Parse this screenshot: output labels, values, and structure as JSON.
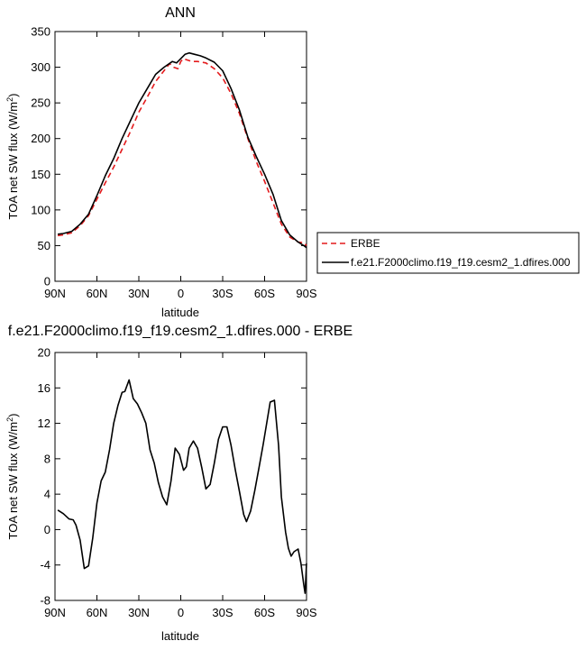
{
  "chart_data": [
    {
      "type": "line",
      "title": "ANN",
      "xlabel": "latitude",
      "ylabel": "TOA net SW flux (W/m",
      "ylabel_sup": "2",
      "ylabel_close": ")",
      "xlim": [
        90,
        -90
      ],
      "ylim": [
        0,
        350
      ],
      "x_ticks": [
        90,
        60,
        30,
        0,
        -30,
        -60,
        -90
      ],
      "x_tick_labels": [
        "90N",
        "60N",
        "30N",
        "0",
        "30S",
        "60S",
        "90S"
      ],
      "y_ticks": [
        0,
        50,
        100,
        150,
        200,
        250,
        300,
        350
      ],
      "y_tick_labels": [
        "0",
        "50",
        "100",
        "150",
        "200",
        "250",
        "300",
        "350"
      ],
      "legend_position": "right",
      "series": [
        {
          "name": "ERBE",
          "color": "#e41a1c",
          "dash": "dashed",
          "points": [
            [
              88,
              64
            ],
            [
              84,
              65
            ],
            [
              78,
              68
            ],
            [
              72,
              78
            ],
            [
              66,
              92
            ],
            [
              60,
              115
            ],
            [
              54,
              138
            ],
            [
              48,
              160
            ],
            [
              42,
              185
            ],
            [
              36,
              210
            ],
            [
              30,
              237
            ],
            [
              24,
              258
            ],
            [
              18,
              280
            ],
            [
              12,
              295
            ],
            [
              8,
              305
            ],
            [
              5,
              300
            ],
            [
              2,
              298
            ],
            [
              0,
              308
            ],
            [
              -2,
              312
            ],
            [
              -5,
              310
            ],
            [
              -8,
              308
            ],
            [
              -12,
              308
            ],
            [
              -18,
              306
            ],
            [
              -24,
              298
            ],
            [
              -30,
              285
            ],
            [
              -36,
              263
            ],
            [
              -42,
              235
            ],
            [
              -48,
              200
            ],
            [
              -54,
              168
            ],
            [
              -60,
              140
            ],
            [
              -66,
              110
            ],
            [
              -72,
              80
            ],
            [
              -78,
              62
            ],
            [
              -84,
              55
            ],
            [
              -88,
              54
            ],
            [
              -90,
              50
            ]
          ]
        },
        {
          "name": "f.e21.F2000climo.f19_f19.cesm2_1.dfires.000",
          "color": "#000000",
          "dash": "solid",
          "points": [
            [
              88,
              66
            ],
            [
              84,
              67
            ],
            [
              78,
              70
            ],
            [
              72,
              80
            ],
            [
              66,
              94
            ],
            [
              60,
              120
            ],
            [
              54,
              148
            ],
            [
              48,
              172
            ],
            [
              42,
              200
            ],
            [
              36,
              225
            ],
            [
              30,
              250
            ],
            [
              24,
              270
            ],
            [
              18,
              290
            ],
            [
              12,
              300
            ],
            [
              6,
              308
            ],
            [
              3,
              306
            ],
            [
              0,
              312
            ],
            [
              -3,
              318
            ],
            [
              -6,
              320
            ],
            [
              -10,
              318
            ],
            [
              -14,
              316
            ],
            [
              -18,
              313
            ],
            [
              -24,
              307
            ],
            [
              -30,
              295
            ],
            [
              -36,
              270
            ],
            [
              -42,
              240
            ],
            [
              -48,
              202
            ],
            [
              -54,
              175
            ],
            [
              -60,
              150
            ],
            [
              -66,
              122
            ],
            [
              -72,
              85
            ],
            [
              -78,
              65
            ],
            [
              -84,
              55
            ],
            [
              -88,
              50
            ],
            [
              -90,
              47
            ]
          ]
        }
      ]
    },
    {
      "type": "line",
      "title": "f.e21.F2000climo.f19_f19.cesm2_1.dfires.000 - ERBE",
      "xlabel": "latitude",
      "ylabel": "TOA net SW flux (W/m",
      "ylabel_sup": "2",
      "ylabel_close": ")",
      "xlim": [
        90,
        -90
      ],
      "ylim": [
        -8,
        20
      ],
      "x_ticks": [
        90,
        60,
        30,
        0,
        -30,
        -60,
        -90
      ],
      "x_tick_labels": [
        "90N",
        "60N",
        "30N",
        "0",
        "30S",
        "60S",
        "90S"
      ],
      "y_ticks": [
        -8,
        -4,
        0,
        4,
        8,
        12,
        16,
        20
      ],
      "y_tick_labels": [
        "-8",
        "-4",
        "0",
        "4",
        "8",
        "12",
        "16",
        "20"
      ],
      "series": [
        {
          "color": "#000000",
          "dash": "solid",
          "points": [
            [
              88,
              2.2
            ],
            [
              84,
              1.8
            ],
            [
              80,
              1.2
            ],
            [
              77,
              1.1
            ],
            [
              75,
              0.5
            ],
            [
              72,
              -1.2
            ],
            [
              69,
              -4.4
            ],
            [
              66,
              -4.1
            ],
            [
              63,
              -1.0
            ],
            [
              60,
              3.0
            ],
            [
              57,
              5.5
            ],
            [
              54,
              6.5
            ],
            [
              51,
              9.0
            ],
            [
              48,
              12.0
            ],
            [
              45,
              14.0
            ],
            [
              42,
              15.5
            ],
            [
              40,
              15.6
            ],
            [
              37,
              16.9
            ],
            [
              34,
              14.8
            ],
            [
              31,
              14.2
            ],
            [
              28,
              13.2
            ],
            [
              25,
              12.0
            ],
            [
              22,
              9.0
            ],
            [
              19,
              7.5
            ],
            [
              16,
              5.3
            ],
            [
              13,
              3.7
            ],
            [
              10,
              2.8
            ],
            [
              7,
              5.5
            ],
            [
              4,
              9.2
            ],
            [
              1,
              8.5
            ],
            [
              -2,
              6.7
            ],
            [
              -4,
              7.1
            ],
            [
              -6,
              9.2
            ],
            [
              -9,
              10.0
            ],
            [
              -12,
              9.2
            ],
            [
              -15,
              7.0
            ],
            [
              -18,
              4.6
            ],
            [
              -21,
              5.1
            ],
            [
              -24,
              7.5
            ],
            [
              -27,
              10.2
            ],
            [
              -30,
              11.6
            ],
            [
              -33,
              11.6
            ],
            [
              -36,
              9.5
            ],
            [
              -39,
              6.8
            ],
            [
              -42,
              4.3
            ],
            [
              -45,
              1.7
            ],
            [
              -47,
              0.9
            ],
            [
              -50,
              2.1
            ],
            [
              -53,
              4.4
            ],
            [
              -56,
              7.0
            ],
            [
              -59,
              9.6
            ],
            [
              -62,
              12.5
            ],
            [
              -64,
              14.4
            ],
            [
              -67,
              14.6
            ],
            [
              -70,
              9.5
            ],
            [
              -72,
              3.7
            ],
            [
              -75,
              -0.3
            ],
            [
              -77,
              -2.1
            ],
            [
              -79,
              -3.0
            ],
            [
              -81,
              -2.5
            ],
            [
              -84,
              -2.2
            ],
            [
              -86,
              -3.8
            ],
            [
              -88,
              -6.2
            ],
            [
              -89,
              -7.2
            ],
            [
              -90,
              -3.8
            ]
          ]
        }
      ]
    }
  ]
}
